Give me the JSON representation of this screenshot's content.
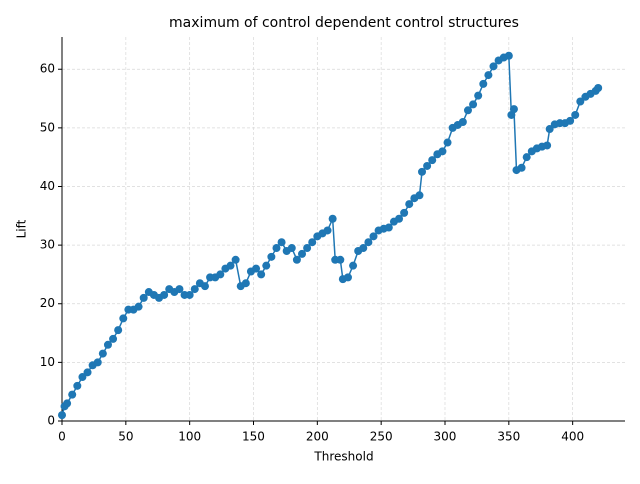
{
  "chart_data": {
    "type": "line",
    "title": "maximum of control dependent control structures",
    "xlabel": "Threshold",
    "ylabel": "Lift",
    "x": [
      0,
      2,
      4,
      8,
      12,
      16,
      20,
      24,
      28,
      32,
      36,
      40,
      44,
      48,
      52,
      56,
      60,
      64,
      68,
      72,
      76,
      80,
      84,
      88,
      92,
      96,
      100,
      104,
      108,
      112,
      116,
      120,
      124,
      128,
      132,
      136,
      140,
      144,
      148,
      152,
      156,
      160,
      164,
      168,
      172,
      176,
      180,
      184,
      188,
      192,
      196,
      200,
      204,
      208,
      212,
      214,
      218,
      220,
      224,
      228,
      232,
      236,
      240,
      244,
      248,
      252,
      256,
      260,
      264,
      268,
      272,
      276,
      280,
      282,
      286,
      290,
      294,
      298,
      302,
      306,
      310,
      314,
      318,
      322,
      326,
      330,
      334,
      338,
      342,
      346,
      350,
      352,
      354,
      356,
      360,
      364,
      368,
      372,
      376,
      380,
      382,
      386,
      390,
      394,
      398,
      402,
      406,
      410,
      414,
      418,
      420
    ],
    "series": [
      {
        "name": "Lift",
        "color": "#1f77b4",
        "values": [
          1,
          2.5,
          3,
          4.5,
          6,
          7.5,
          8.3,
          9.5,
          10,
          11.5,
          13,
          14,
          15.5,
          17.5,
          19,
          19,
          19.5,
          21,
          22,
          21.5,
          21,
          21.5,
          22.5,
          22,
          22.5,
          21.5,
          21.5,
          22.5,
          23.5,
          23,
          24.5,
          24.5,
          25,
          26,
          26.5,
          27.5,
          23,
          23.5,
          25.5,
          26,
          25,
          26.5,
          28,
          29.5,
          30.5,
          29,
          29.5,
          27.5,
          28.5,
          29.5,
          30.5,
          31.5,
          32,
          32.5,
          34.5,
          27.5,
          27.5,
          24.2,
          24.5,
          26.5,
          29,
          29.5,
          30.5,
          31.5,
          32.5,
          32.8,
          33,
          34,
          34.5,
          35.5,
          37,
          38,
          38.5,
          42.5,
          43.5,
          44.5,
          45.5,
          46,
          47.5,
          50,
          50.5,
          51,
          53,
          54,
          55.5,
          57.5,
          59,
          60.5,
          61.5,
          62,
          62.3,
          52.2,
          53.2,
          42.8,
          43.2,
          45,
          46,
          46.5,
          46.8,
          47,
          49.8,
          50.6,
          50.8,
          50.8,
          51.2,
          52.2,
          54.5,
          55.3,
          55.8,
          56.3,
          56.8
        ]
      }
    ],
    "xlim": [
      0,
      441
    ],
    "ylim": [
      0,
      65.5
    ],
    "xticks": [
      0,
      50,
      100,
      150,
      200,
      250,
      300,
      350,
      400
    ],
    "yticks": [
      0,
      10,
      20,
      30,
      40,
      50,
      60
    ],
    "grid": true
  }
}
